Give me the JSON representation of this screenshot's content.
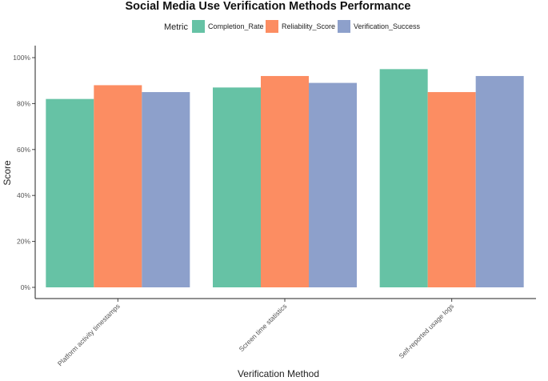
{
  "chart_data": {
    "type": "bar",
    "title": "Social Media Use Verification Methods Performance",
    "xlabel": "Verification Method",
    "ylabel": "Score",
    "categories": [
      "Platform activity timestamps",
      "Screen time statistics",
      "Self-reported usage logs"
    ],
    "series": [
      {
        "name": "Completion_Rate",
        "color": "#66c2a5",
        "values": [
          82,
          87,
          95
        ]
      },
      {
        "name": "Reliability_Score",
        "color": "#fc8d62",
        "values": [
          88,
          92,
          85
        ]
      },
      {
        "name": "Verification_Success",
        "color": "#8da0cb",
        "values": [
          85,
          89,
          92
        ]
      }
    ],
    "ylim": [
      0,
      100
    ],
    "yticks": [
      "0%",
      "20%",
      "40%",
      "60%",
      "80%",
      "100%"
    ],
    "legend_title": "Metric",
    "legend_position": "top",
    "grid": false
  }
}
